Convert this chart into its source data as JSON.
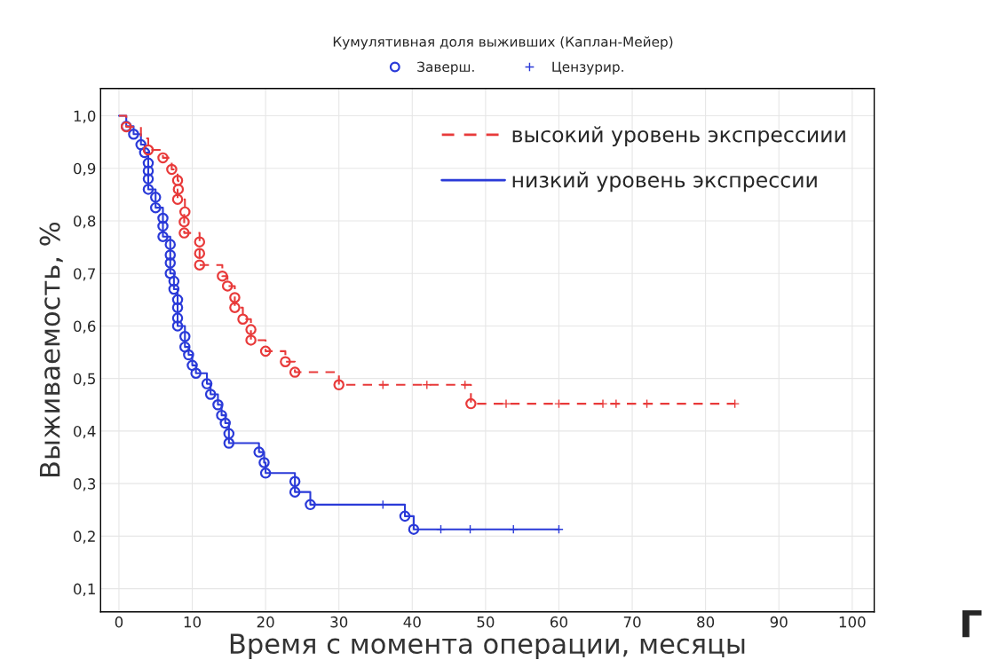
{
  "chart_data": {
    "type": "step",
    "title": "Кумулятивная доля выживших (Каплан-Мейер)",
    "xlabel": "Время с момента операции, месяцы",
    "ylabel": "Выживаемость, %",
    "xlim": [
      -2.5,
      103
    ],
    "ylim": [
      0.056,
      1.052
    ],
    "xticks": [
      0,
      10,
      20,
      30,
      40,
      50,
      60,
      70,
      80,
      90,
      100
    ],
    "yticks": [
      {
        "value": 0.1,
        "label": "0,1"
      },
      {
        "value": 0.2,
        "label": "0,2"
      },
      {
        "value": 0.3,
        "label": "0,3"
      },
      {
        "value": 0.4,
        "label": "0,4"
      },
      {
        "value": 0.5,
        "label": "0,5"
      },
      {
        "value": 0.6,
        "label": "0,6"
      },
      {
        "value": 0.7,
        "label": "0,7"
      },
      {
        "value": 0.8,
        "label": "0,8"
      },
      {
        "value": 0.9,
        "label": "0,9"
      },
      {
        "value": 1.0,
        "label": "1,0"
      }
    ],
    "grid": true,
    "legend": "top right",
    "annotations": [
      "Г"
    ],
    "series": [
      {
        "name": "высокий уровень экспрессиии",
        "color": "#e83a3a",
        "line_style": "dashed",
        "x": [
          0,
          1,
          3,
          4,
          6,
          7.2,
          8,
          8.1,
          8,
          9,
          8.9,
          8.9,
          11,
          11,
          11,
          14.1,
          14.8,
          15.8,
          15.8,
          16.9,
          18,
          18,
          20,
          22.7,
          24,
          30,
          48,
          84
        ],
        "values": [
          1.0,
          0.979,
          0.957,
          0.935,
          0.92,
          0.898,
          0.877,
          0.86,
          0.841,
          0.817,
          0.798,
          0.777,
          0.76,
          0.738,
          0.716,
          0.695,
          0.676,
          0.654,
          0.635,
          0.613,
          0.593,
          0.573,
          0.552,
          0.532,
          0.512,
          0.488,
          0.452,
          0.452
        ]
      },
      {
        "name": "низкий уровень экспрессии",
        "color": "#2a3ad8",
        "line_style": "solid",
        "x": [
          0,
          1,
          2,
          3,
          3.5,
          4,
          4,
          4,
          4,
          5,
          5,
          6,
          6,
          6,
          7,
          7,
          7,
          7,
          7.5,
          7.5,
          8,
          8,
          8,
          8,
          9,
          9,
          9.5,
          10,
          10.5,
          12,
          12.5,
          13.5,
          14,
          14.5,
          15,
          15,
          19.1,
          19.8,
          20,
          24,
          24,
          26.1,
          39,
          40.2,
          60
        ],
        "values": [
          1.0,
          0.98,
          0.965,
          0.945,
          0.93,
          0.91,
          0.895,
          0.88,
          0.86,
          0.845,
          0.825,
          0.805,
          0.79,
          0.77,
          0.755,
          0.735,
          0.72,
          0.7,
          0.685,
          0.67,
          0.65,
          0.635,
          0.615,
          0.6,
          0.58,
          0.56,
          0.545,
          0.525,
          0.51,
          0.49,
          0.47,
          0.45,
          0.43,
          0.415,
          0.395,
          0.377,
          0.36,
          0.34,
          0.32,
          0.304,
          0.284,
          0.26,
          0.238,
          0.213,
          0.213
        ]
      },
      {
        "name": "Заверш.",
        "type": "scatter",
        "marker": "circle",
        "color": "#2a3ad8",
        "x": [
          1,
          2,
          3,
          3.5,
          4,
          4,
          4,
          4,
          5,
          5,
          6,
          6,
          6,
          7,
          7,
          7,
          7,
          7.5,
          7.5,
          8,
          8,
          8,
          8,
          9,
          9,
          9.5,
          10,
          10.5,
          12,
          12.5,
          13.5,
          14,
          14.5,
          15,
          15,
          19.1,
          19.8,
          20,
          24,
          24,
          26.1,
          39,
          40.2
        ],
        "values": [
          0.98,
          0.965,
          0.945,
          0.93,
          0.91,
          0.895,
          0.88,
          0.86,
          0.845,
          0.825,
          0.805,
          0.79,
          0.77,
          0.755,
          0.735,
          0.72,
          0.7,
          0.685,
          0.67,
          0.65,
          0.635,
          0.615,
          0.6,
          0.58,
          0.56,
          0.545,
          0.525,
          0.51,
          0.49,
          0.47,
          0.45,
          0.43,
          0.415,
          0.395,
          0.377,
          0.36,
          0.34,
          0.32,
          0.304,
          0.284,
          0.26,
          0.238,
          0.213
        ]
      },
      {
        "type": "scatter",
        "marker": "circle",
        "color": "#e83a3a",
        "x": [
          1,
          4,
          6,
          7.2,
          8,
          8.1,
          8,
          9,
          8.9,
          8.9,
          11,
          11,
          11,
          14.1,
          14.8,
          15.8,
          15.8,
          16.9,
          18,
          18,
          20,
          22.7,
          24,
          30,
          48
        ],
        "values": [
          0.979,
          0.935,
          0.92,
          0.898,
          0.877,
          0.86,
          0.841,
          0.817,
          0.798,
          0.777,
          0.76,
          0.738,
          0.716,
          0.695,
          0.676,
          0.654,
          0.635,
          0.613,
          0.593,
          0.573,
          0.552,
          0.532,
          0.512,
          0.488,
          0.452
        ]
      },
      {
        "name": "Цензурир.",
        "type": "scatter",
        "marker": "cross",
        "color": "#2a3ad8",
        "x": [
          36,
          43.9,
          47.9,
          53.8,
          60
        ],
        "values": [
          0.26,
          0.213,
          0.213,
          0.213,
          0.213
        ]
      },
      {
        "type": "scatter",
        "marker": "cross",
        "color": "#e83a3a",
        "x": [
          36,
          42,
          47.2,
          52.8,
          60,
          66,
          67.8,
          72,
          84
        ],
        "values": [
          0.488,
          0.488,
          0.488,
          0.452,
          0.452,
          0.452,
          0.452,
          0.452,
          0.452
        ]
      }
    ]
  }
}
